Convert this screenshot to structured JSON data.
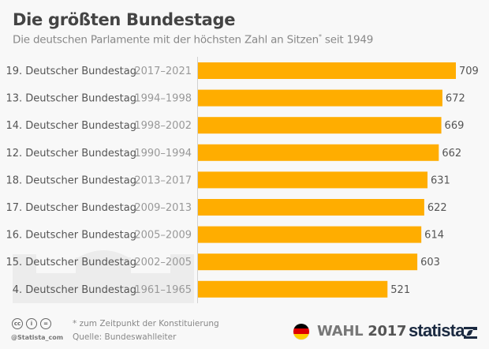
{
  "header": {
    "title": "Die größten Bundestage",
    "subtitle": "Die deutschen Parlamente mit der höchsten Zahl an Sitzen",
    "subtitle_marker": "*",
    "subtitle_suffix": " seit 1949"
  },
  "chart_data": {
    "type": "bar",
    "orientation": "horizontal",
    "title": "Die größten Bundestage",
    "subtitle": "Die deutschen Parlamente mit der höchsten Zahl an Sitzen* seit 1949",
    "xlabel": "",
    "ylabel": "",
    "xlim": [
      0,
      709
    ],
    "grid": false,
    "legend": "none",
    "bar_color": "#ffad00",
    "categories": [
      "19. Deutscher Bundestag",
      "13. Deutscher Bundestag",
      "14. Deutscher Bundestag",
      "12. Deutscher Bundestag",
      "18. Deutscher Bundestag",
      "17. Deutscher Bundestag",
      "16. Deutscher Bundestag",
      "15. Deutscher Bundestag",
      "4. Deutscher Bundestag"
    ],
    "periods": [
      "2017–2021",
      "1994–1998",
      "1998–2002",
      "1990–1994",
      "2013–2017",
      "2009–2013",
      "2005–2009",
      "2002–2005",
      "1961–1965"
    ],
    "values": [
      709,
      672,
      669,
      662,
      631,
      622,
      614,
      603,
      521
    ]
  },
  "footer": {
    "note": "* zum Zeitpunkt der Konstituierung",
    "source": "Quelle: Bundeswahlleiter",
    "handle": "@Statista_com",
    "license_icons": [
      "cc-icon",
      "by-icon",
      "nd-icon"
    ],
    "license_glyphs": [
      "cc",
      "i",
      "="
    ],
    "campaign_label": "WAHL",
    "campaign_year": "2017",
    "brand": "statista",
    "flag_colors": [
      "#000000",
      "#dd0000",
      "#ffce00"
    ]
  }
}
